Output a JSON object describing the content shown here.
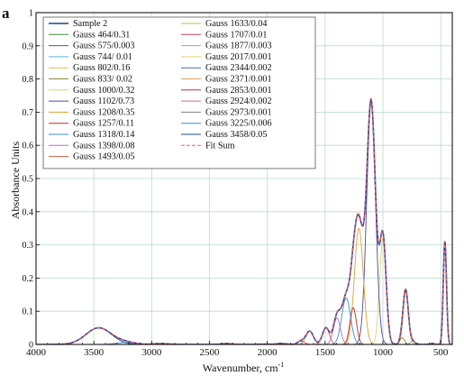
{
  "panel_label": "a",
  "chart_data": {
    "type": "line",
    "title": "",
    "xlabel": "Wavenumber, cm",
    "xlabel_sup": "-1",
    "ylabel": "Absorbance Units",
    "xlim": [
      4000,
      400
    ],
    "ylim": [
      0,
      1
    ],
    "x_reversed": true,
    "grid": true,
    "legend_position": "top-left",
    "x_ticks": [
      {
        "v": 4000,
        "label": "4000"
      },
      {
        "v": 3500,
        "label": "3500"
      },
      {
        "v": 3000,
        "label": "3000"
      },
      {
        "v": 2500,
        "label": "2500"
      },
      {
        "v": 2000,
        "label": "2000"
      },
      {
        "v": 1500,
        "label": "1500"
      },
      {
        "v": 1000,
        "label": "1000"
      },
      {
        "v": 500,
        "label": "500"
      }
    ],
    "y_ticks": [
      {
        "v": 0,
        "label": "0"
      },
      {
        "v": 0.1,
        "label": "0.1"
      },
      {
        "v": 0.2,
        "label": "0.2"
      },
      {
        "v": 0.3,
        "label": "0.3"
      },
      {
        "v": 0.4,
        "label": "0.4"
      },
      {
        "v": 0.5,
        "label": "0.5"
      },
      {
        "v": 0.6,
        "label": "0.6"
      },
      {
        "v": 0.7,
        "label": "0.7"
      },
      {
        "v": 0.8,
        "label": "0.8"
      },
      {
        "v": 0.9,
        "label": "0.9"
      },
      {
        "v": 1,
        "label": "1"
      }
    ],
    "series": [
      {
        "name": "Sample 2",
        "kind": "sum",
        "color": "#1f3f9a",
        "dash": false
      },
      {
        "name": "Gauss 464/0.31",
        "kind": "band",
        "center": 464,
        "height": 0.31,
        "width": 14,
        "color": "#3a8f3a"
      },
      {
        "name": "Gauss 575/0.003",
        "kind": "band",
        "center": 575,
        "height": 0.003,
        "width": 20,
        "color": "#c0392b"
      },
      {
        "name": "Gauss 744/ 0.01",
        "kind": "band",
        "center": 744,
        "height": 0.01,
        "width": 20,
        "color": "#5ab4e8"
      },
      {
        "name": "Gauss 802/0.16",
        "kind": "band",
        "center": 802,
        "height": 0.16,
        "width": 22,
        "color": "#e8c040"
      },
      {
        "name": "Gauss 833/ 0.02",
        "kind": "band",
        "center": 833,
        "height": 0.02,
        "width": 20,
        "color": "#8a8a3a"
      },
      {
        "name": "Gauss 1000/0.32",
        "kind": "band",
        "center": 1000,
        "height": 0.32,
        "width": 28,
        "color": "#e8d06a"
      },
      {
        "name": "Gauss 1102/0.73",
        "kind": "band",
        "center": 1102,
        "height": 0.73,
        "width": 38,
        "color": "#4a4a9a"
      },
      {
        "name": "Gauss 1208/0.35",
        "kind": "band",
        "center": 1208,
        "height": 0.35,
        "width": 38,
        "color": "#e0a030"
      },
      {
        "name": "Gauss 1257/0.11",
        "kind": "band",
        "center": 1257,
        "height": 0.11,
        "width": 28,
        "color": "#c02828"
      },
      {
        "name": "Gauss 1318/0.14",
        "kind": "band",
        "center": 1318,
        "height": 0.14,
        "width": 38,
        "color": "#3a8fd8"
      },
      {
        "name": "Gauss 1398/0.08",
        "kind": "band",
        "center": 1398,
        "height": 0.08,
        "width": 30,
        "color": "#b070c8"
      },
      {
        "name": "Gauss 1493/0.05",
        "kind": "band",
        "center": 1493,
        "height": 0.05,
        "width": 30,
        "color": "#d06040"
      },
      {
        "name": "Gauss 1633/0.04",
        "kind": "band",
        "center": 1633,
        "height": 0.04,
        "width": 32,
        "color": "#a0c050"
      },
      {
        "name": "Gauss 1707/0.01",
        "kind": "band",
        "center": 1707,
        "height": 0.01,
        "width": 30,
        "color": "#c04060"
      },
      {
        "name": "Gauss 1877/0.003",
        "kind": "band",
        "center": 1877,
        "height": 0.003,
        "width": 40,
        "color": "#60c0d0"
      },
      {
        "name": "Gauss 2017/0.001",
        "kind": "band",
        "center": 2017,
        "height": 0.001,
        "width": 40,
        "color": "#e8d070"
      },
      {
        "name": "Gauss 2344/0.002",
        "kind": "band",
        "center": 2344,
        "height": 0.002,
        "width": 40,
        "color": "#4a6ab0"
      },
      {
        "name": "Gauss 2371/0.001",
        "kind": "band",
        "center": 2371,
        "height": 0.001,
        "width": 40,
        "color": "#e0a060"
      },
      {
        "name": "Gauss 2853/0.001",
        "kind": "band",
        "center": 2853,
        "height": 0.001,
        "width": 40,
        "color": "#c03030"
      },
      {
        "name": "Gauss 2924/0.002",
        "kind": "band",
        "center": 2924,
        "height": 0.002,
        "width": 40,
        "color": "#d07070"
      },
      {
        "name": "Gauss 2973/0.001",
        "kind": "band",
        "center": 2973,
        "height": 0.001,
        "width": 40,
        "color": "#808080"
      },
      {
        "name": "Gauss 3225/0.006",
        "kind": "band",
        "center": 3225,
        "height": 0.006,
        "width": 80,
        "color": "#3a8fd8"
      },
      {
        "name": "Gauss 3458/0.05",
        "kind": "band",
        "center": 3458,
        "height": 0.05,
        "width": 110,
        "color": "#2a4a8a"
      },
      {
        "name": "Fit Sum",
        "kind": "fit",
        "color": "#e06060",
        "dash": true
      }
    ]
  }
}
